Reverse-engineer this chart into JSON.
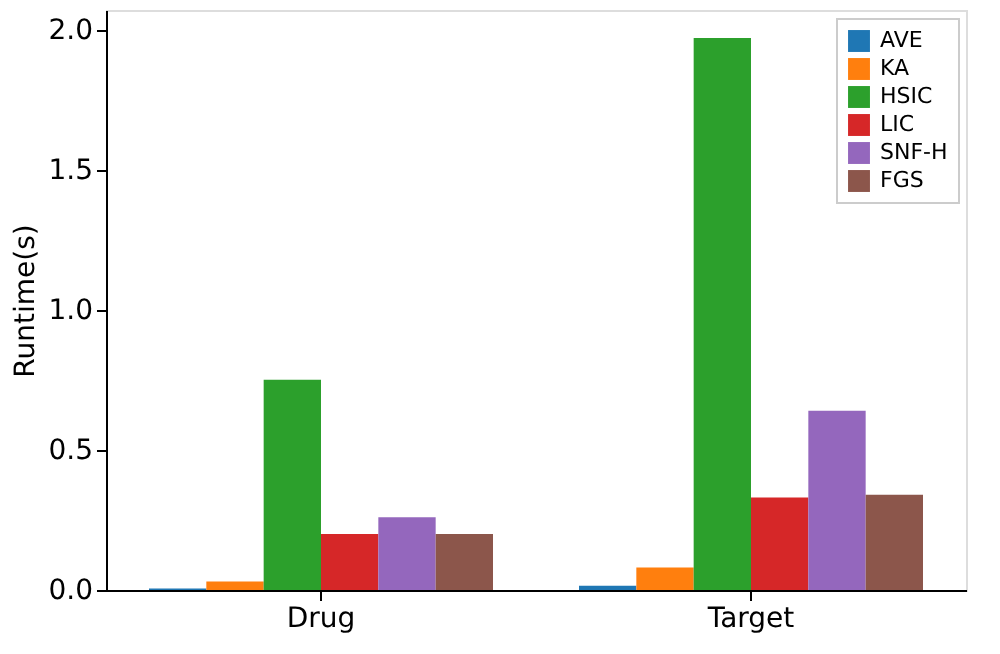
{
  "chart_data": {
    "type": "bar",
    "ylabel": "Runtime(s)",
    "categories": [
      "Drug",
      "Target"
    ],
    "series": [
      {
        "name": "AVE",
        "color": "#1f77b4",
        "values": [
          0.005,
          0.015
        ]
      },
      {
        "name": "KA",
        "color": "#ff7f0e",
        "values": [
          0.03,
          0.08
        ]
      },
      {
        "name": "HSIC",
        "color": "#2ca02c",
        "values": [
          0.75,
          1.97
        ]
      },
      {
        "name": "LIC",
        "color": "#d62728",
        "values": [
          0.2,
          0.33
        ]
      },
      {
        "name": "SNF-H",
        "color": "#9467bd",
        "values": [
          0.26,
          0.64
        ]
      },
      {
        "name": "FGS",
        "color": "#8c564b",
        "values": [
          0.2,
          0.34
        ]
      }
    ],
    "ylim": [
      0,
      2.07
    ],
    "yticks": [
      {
        "value": 0,
        "label": "0.0"
      },
      {
        "value": 0.5,
        "label": "0.5"
      },
      {
        "value": 1,
        "label": "1.0"
      },
      {
        "value": 1.5,
        "label": "1.5"
      },
      {
        "value": 2,
        "label": "2.0"
      }
    ],
    "grid": false,
    "legend": "top right"
  }
}
